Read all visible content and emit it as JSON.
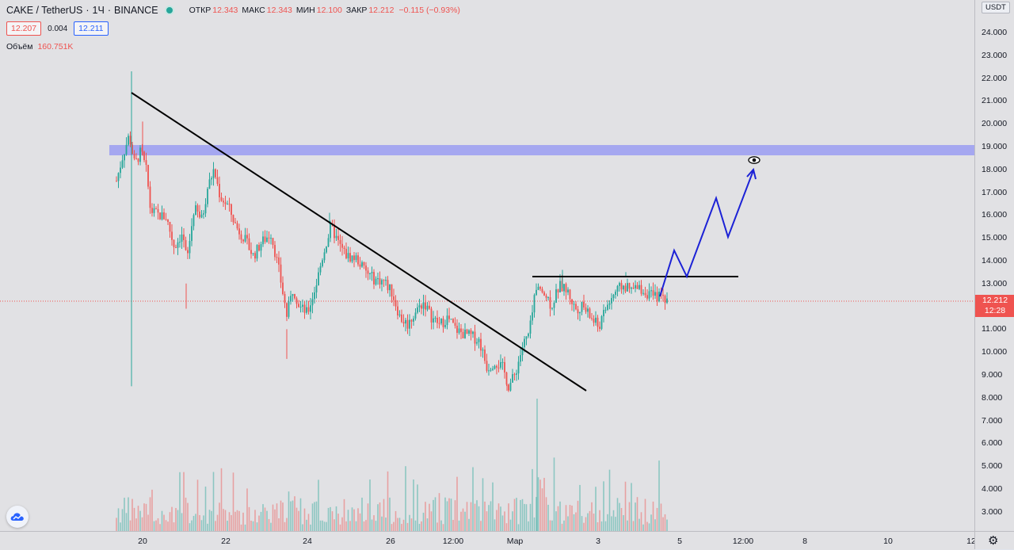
{
  "symbol": {
    "pair": "CAKE / TetherUS",
    "interval": "1Ч",
    "exchange": "BINANCE"
  },
  "ohlc": {
    "open_label": "ОТКР",
    "open": "12.343",
    "high_label": "МАКС",
    "high": "12.343",
    "low_label": "МИН",
    "low": "12.100",
    "close_label": "ЗАКР",
    "close": "12.212",
    "change": "−0.115 (−0.93%)"
  },
  "quote": {
    "bid": "12.207",
    "spread": "0.004",
    "ask": "12.211"
  },
  "volume": {
    "label": "Объём",
    "value": "160.751K"
  },
  "price_axis": {
    "currency": "USDT",
    "ticks": [
      "24.000",
      "23.000",
      "22.000",
      "21.000",
      "20.000",
      "19.000",
      "18.000",
      "17.000",
      "16.000",
      "15.000",
      "14.000",
      "13.000",
      "12.000",
      "11.000",
      "10.000",
      "9.000",
      "8.000",
      "7.000",
      "6.000",
      "5.000",
      "4.000",
      "3.000"
    ],
    "last_price": "12.212",
    "countdown": "12:28"
  },
  "time_axis": {
    "ticks": [
      "20",
      "22",
      "24",
      "26",
      "12:00",
      "Мар",
      "3",
      "5",
      "12:00",
      "8",
      "10",
      "12"
    ]
  },
  "colors": {
    "up": "#26a69a",
    "down": "#ef5350",
    "zone": "#9a9cf2",
    "projection": "#1c22d6"
  },
  "icons": {
    "status": "market-open-dot",
    "logo": "tradingview-cloud-icon",
    "settings": "gear-icon",
    "eye": "eye-icon"
  }
}
